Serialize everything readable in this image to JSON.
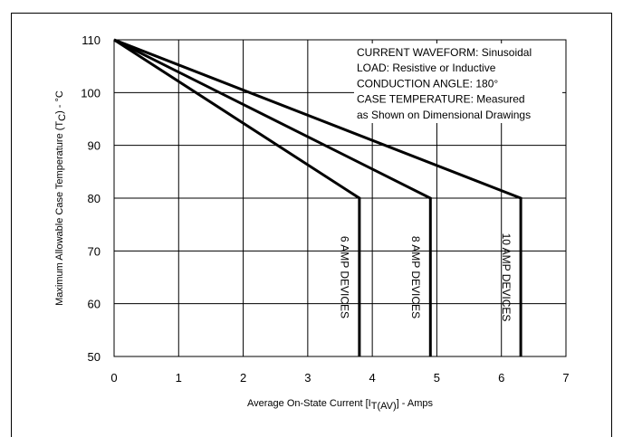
{
  "chart_data": {
    "type": "line",
    "xlabel": {
      "main": "Average On-State Current [I",
      "sub": "T(AV)",
      "tail": "] - Amps"
    },
    "ylabel": {
      "main": "Maximum Allowable Case Temperature (T",
      "sub": "C",
      "tail": ") - °C"
    },
    "xlim": [
      0,
      7
    ],
    "ylim": [
      50,
      110
    ],
    "xticks": [
      "0",
      "1",
      "2",
      "3",
      "4",
      "5",
      "6",
      "7"
    ],
    "yticks": [
      "50",
      "60",
      "70",
      "80",
      "90",
      "100",
      "110"
    ],
    "grid": true,
    "notes": [
      "CURRENT WAVEFORM: Sinusoidal",
      "LOAD: Resistive or Inductive",
      "CONDUCTION ANGLE: 180°",
      "CASE TEMPERATURE: Measured",
      "as Shown on Dimensional Drawings"
    ],
    "series": [
      {
        "name": "6 AMP DEVICES",
        "points": [
          [
            0,
            110
          ],
          [
            3.8,
            80
          ],
          [
            3.8,
            50
          ]
        ]
      },
      {
        "name": "8 AMP DEVICES",
        "points": [
          [
            0,
            110
          ],
          [
            4.9,
            80
          ],
          [
            4.9,
            50
          ]
        ]
      },
      {
        "name": "10 AMP DEVICES",
        "points": [
          [
            0,
            110
          ],
          [
            6.3,
            80
          ],
          [
            6.3,
            50
          ]
        ]
      }
    ],
    "series_color": "#000000"
  }
}
